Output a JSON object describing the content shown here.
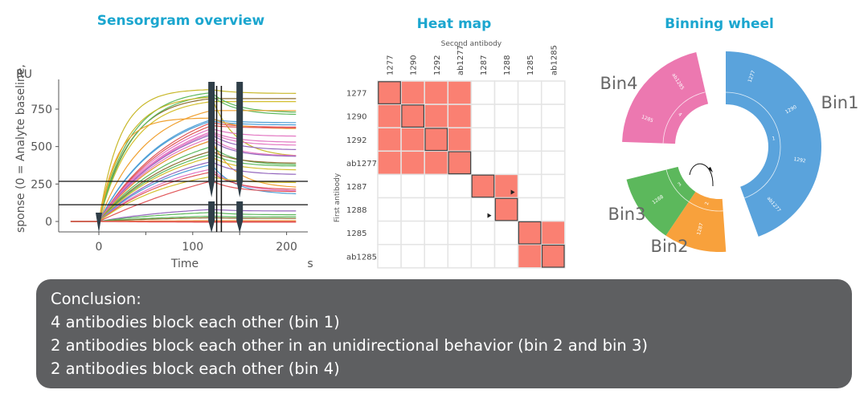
{
  "titles": {
    "sensorgram": "Sensorgram overview",
    "heatmap": "Heat map",
    "wheel": "Binning wheel"
  },
  "conclusion": {
    "heading": "Conclusion:",
    "lines": [
      "4 antibodies block each other (bin 1)",
      "2 antibodies block each other in an unidirectional behavior (bin 2 and bin 3)",
      "2 antibodies block each other (bin 4)"
    ]
  },
  "chart_data": [
    {
      "type": "line",
      "title": "Sensorgram overview",
      "xlabel": "Time",
      "xunit": "s",
      "ylabel": "sponse (0 = Analyte baseline,",
      "yunit": "RU",
      "xlim": [
        -40,
        220
      ],
      "ylim": [
        -60,
        900
      ],
      "xticks": [
        0,
        100,
        200
      ],
      "yticks": [
        0,
        250,
        500,
        750
      ],
      "hlines": [
        268,
        112
      ],
      "vlines": [
        125.5,
        130.5
      ],
      "injection_markers": [
        0,
        120,
        150
      ],
      "series": [
        {
          "color": "#c8b82a",
          "at120": 880,
          "at210": 855,
          "k": 0.045
        },
        {
          "color": "#8c6d31",
          "at120": 820,
          "at210": 820,
          "k": 0.03
        },
        {
          "color": "#d4c030",
          "at120": 800,
          "at210": 800,
          "k": 0.028
        },
        {
          "color": "#5cb85c",
          "at120": 860,
          "at210": 730,
          "k": 0.03
        },
        {
          "color": "#5cb85c",
          "at120": 840,
          "at210": 715,
          "k": 0.028
        },
        {
          "color": "#f0a030",
          "at120": 740,
          "at210": 740,
          "k": 0.02
        },
        {
          "color": "#c8b82a",
          "at120": 830,
          "at210": 440,
          "k": 0.035
        },
        {
          "color": "#4e9fd6",
          "at120": 680,
          "at210": 660,
          "k": 0.015
        },
        {
          "color": "#4e9fd6",
          "at120": 670,
          "at210": 645,
          "k": 0.015
        },
        {
          "color": "#e15759",
          "at120": 660,
          "at210": 630,
          "k": 0.012
        },
        {
          "color": "#f0a030",
          "at120": 690,
          "at210": 620,
          "k": 0.05
        },
        {
          "color": "#e15759",
          "at120": 640,
          "at210": 625,
          "k": 0.012
        },
        {
          "color": "#e377c2",
          "at120": 620,
          "at210": 570,
          "k": 0.012
        },
        {
          "color": "#e377c2",
          "at120": 600,
          "at210": 530,
          "k": 0.012
        },
        {
          "color": "#e377c2",
          "at120": 590,
          "at210": 510,
          "k": 0.012
        },
        {
          "color": "#9467bd",
          "at120": 580,
          "at210": 480,
          "k": 0.012
        },
        {
          "color": "#e377c2",
          "at120": 560,
          "at210": 440,
          "k": 0.012
        },
        {
          "color": "#9467bd",
          "at120": 540,
          "at210": 435,
          "k": 0.012
        },
        {
          "color": "#f0a030",
          "at120": 540,
          "at210": 230,
          "k": 0.012
        },
        {
          "color": "#5cb85c",
          "at120": 500,
          "at210": 380,
          "k": 0.012
        },
        {
          "color": "#8c6d31",
          "at120": 470,
          "at210": 390,
          "k": 0.012
        },
        {
          "color": "#5cb85c",
          "at120": 450,
          "at210": 370,
          "k": 0.012
        },
        {
          "color": "#d4c030",
          "at120": 430,
          "at210": 345,
          "k": 0.012
        },
        {
          "color": "#9467bd",
          "at120": 400,
          "at210": 315,
          "k": 0.012
        },
        {
          "color": "#4e9fd6",
          "at120": 380,
          "at210": 185,
          "k": 0.012
        },
        {
          "color": "#e377c2",
          "at120": 350,
          "at210": 205,
          "k": 0.012
        },
        {
          "color": "#e15759",
          "at120": 330,
          "at210": 215,
          "k": 0.012
        },
        {
          "color": "#d4c030",
          "at120": 300,
          "at210": 260,
          "k": 0.012
        },
        {
          "color": "#e15759",
          "at120": 270,
          "at210": 200,
          "k": 0.005
        },
        {
          "color": "#9467bd",
          "at120": 80,
          "at210": 70,
          "k": 0.01
        },
        {
          "color": "#5cb85c",
          "at120": 60,
          "at210": 45,
          "k": 0.01
        },
        {
          "color": "#5cb85c",
          "at120": 35,
          "at210": 30,
          "k": 0.01
        },
        {
          "color": "#8c6d31",
          "at120": 25,
          "at210": 20,
          "k": 0.01
        },
        {
          "color": "#f0a030",
          "at120": 5,
          "at210": 5,
          "k": 0.01
        },
        {
          "color": "#e15759",
          "at120": 0,
          "at210": 0,
          "k": 0.01
        },
        {
          "color": "#e15759",
          "at120": -5,
          "at210": -5,
          "k": 0.01
        }
      ]
    },
    {
      "type": "heatmap",
      "title": "Heat map",
      "xlabel": "Second antibody",
      "ylabel": "First antibody",
      "labels": [
        "1277",
        "1290",
        "1292",
        "ab1277",
        "1287",
        "1288",
        "1285",
        "ab1285"
      ],
      "matrix": [
        [
          1,
          1,
          1,
          1,
          0,
          0,
          0,
          0
        ],
        [
          1,
          1,
          1,
          1,
          0,
          0,
          0,
          0
        ],
        [
          1,
          1,
          1,
          1,
          0,
          0,
          0,
          0
        ],
        [
          1,
          1,
          1,
          1,
          0,
          0,
          0,
          0
        ],
        [
          0,
          0,
          0,
          0,
          1,
          1,
          0,
          0
        ],
        [
          0,
          0,
          0,
          0,
          0,
          1,
          0,
          0
        ],
        [
          0,
          0,
          0,
          0,
          0,
          0,
          1,
          1
        ],
        [
          0,
          0,
          0,
          0,
          0,
          0,
          1,
          1
        ]
      ],
      "arrows": [
        [
          4,
          5
        ],
        [
          5,
          4
        ]
      ],
      "colors": {
        "block": "#fa8072",
        "free": "#ffffff"
      }
    },
    {
      "type": "pie",
      "title": "Binning wheel",
      "bins": [
        {
          "name": "Bin1",
          "id": "1",
          "color": "#5aa3dc",
          "antibodies": [
            "1277",
            "1290",
            "1292",
            "ab1277"
          ]
        },
        {
          "name": "Bin2",
          "id": "2",
          "color": "#f8a13c",
          "antibodies": [
            "1287"
          ]
        },
        {
          "name": "Bin3",
          "id": "3",
          "color": "#5cb85c",
          "antibodies": [
            "1288"
          ]
        },
        {
          "name": "Bin4",
          "id": "4",
          "color": "#ec78b0",
          "antibodies": [
            "1285",
            "ab1285"
          ]
        }
      ]
    }
  ]
}
